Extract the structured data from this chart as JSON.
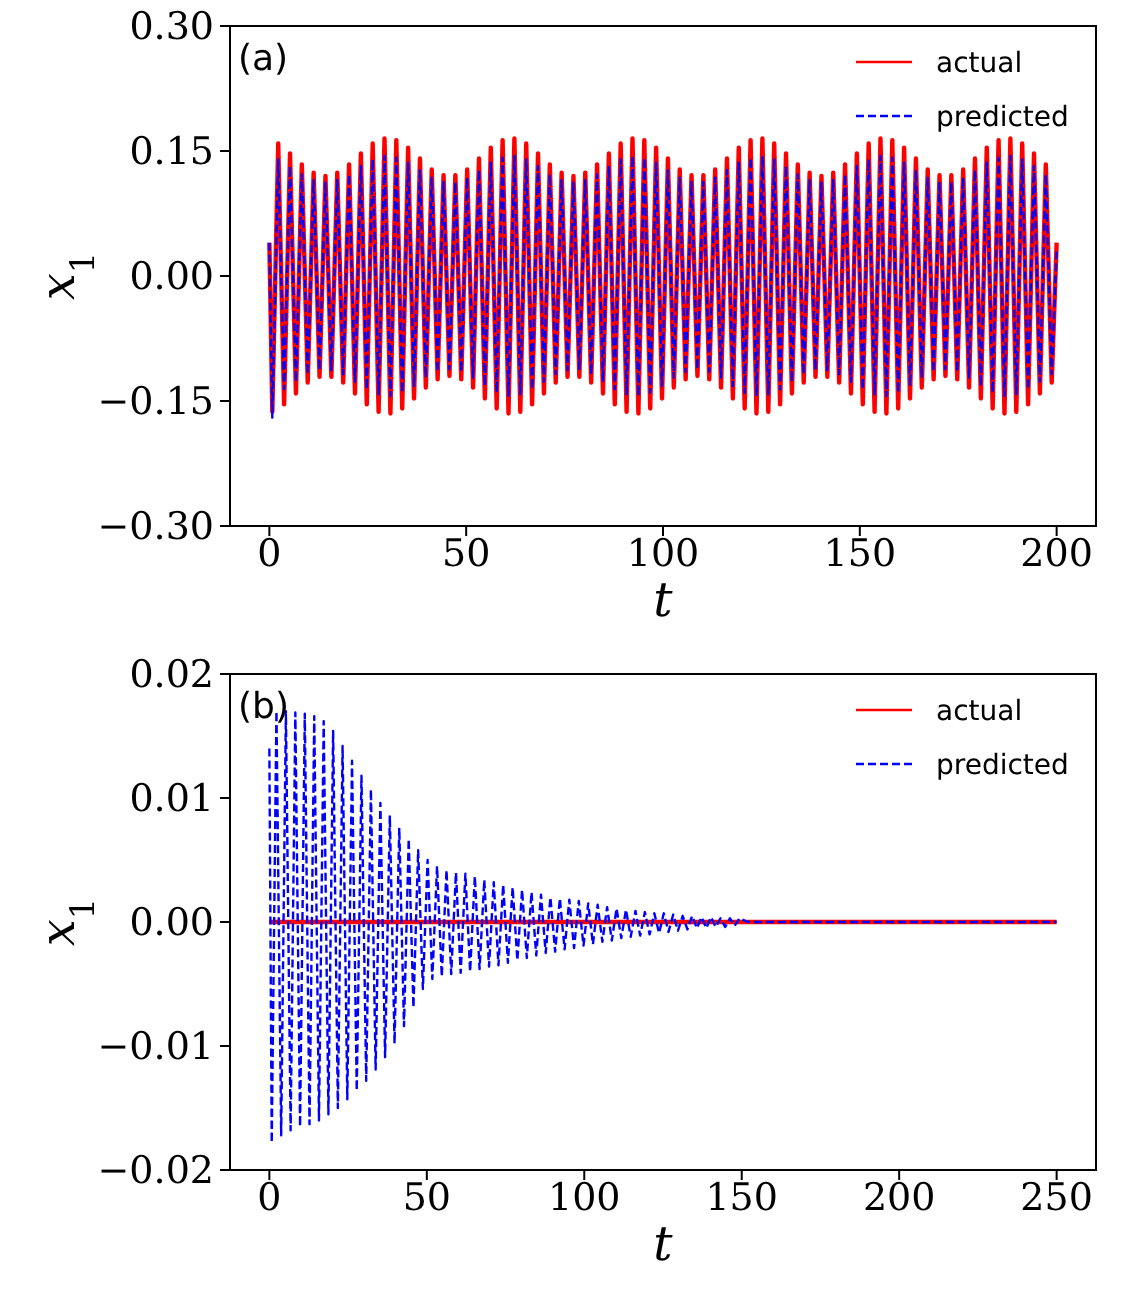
{
  "chart_data": [
    {
      "type": "line",
      "xlabel": "t",
      "ylabel": "x$_{1}$",
      "annotations": [
        "(a)"
      ],
      "legend": "top right",
      "grid": false,
      "xlim": [
        -10,
        210
      ],
      "xticks": [
        0,
        50,
        100,
        150,
        200
      ],
      "ylim": [
        -0.3,
        0.3
      ],
      "yticks": [
        {
          "value": -0.3,
          "label": "−0.30"
        },
        {
          "value": -0.15,
          "label": "−0.15"
        },
        {
          "value": 0,
          "label": "0.00"
        },
        {
          "value": 0.15,
          "label": "0.15"
        },
        {
          "value": 0.3,
          "label": "0.30"
        }
      ],
      "x": [
        0,
        0.75,
        2.25,
        3.75,
        5.25,
        6.75,
        8.25,
        9.75,
        11.25,
        12.75,
        14.25,
        15.75,
        17.25,
        18.75,
        20.25,
        21.75,
        23.25,
        24.75,
        26.25,
        27.75,
        29.25,
        30.75,
        32.25,
        33.75,
        35.25,
        36.75,
        38.25,
        39.75,
        41.25,
        42.75,
        44.25,
        45.75,
        47.25,
        48.75,
        50.25,
        51.75,
        53.25,
        54.75,
        56.25,
        57.75,
        59.25,
        60.75,
        62.25,
        63.75,
        65.25,
        66.75,
        68.25,
        69.75,
        71.25,
        72.75,
        74.25,
        75.75,
        77.25,
        78.75,
        80.25,
        81.75,
        83.25,
        84.75,
        86.25,
        87.75,
        89.25,
        90.75,
        92.25,
        93.75,
        95.25,
        96.75,
        98.25,
        99.75,
        101.25,
        102.75,
        104.25,
        105.75,
        107.25,
        108.75,
        110.25,
        111.75,
        113.25,
        114.75,
        116.25,
        117.75,
        119.25,
        120.75,
        122.25,
        123.75,
        125.25,
        126.75,
        128.25,
        129.75,
        131.25,
        132.75,
        134.25,
        135.75,
        137.25,
        138.75,
        140.25,
        141.75,
        143.25,
        144.75,
        146.25,
        147.75,
        149.25,
        150.75,
        152.25,
        153.75,
        155.25,
        156.75,
        158.25,
        159.75,
        161.25,
        162.75,
        164.25,
        165.75,
        167.25,
        168.75,
        170.25,
        171.75,
        173.25,
        174.75,
        176.25,
        177.75,
        179.25,
        180.75,
        182.25,
        183.75,
        185.25,
        186.75,
        188.25,
        189.75,
        191.25,
        192.75,
        194.25,
        195.75,
        197.25,
        198.75,
        200
      ],
      "series": [
        {
          "name": "actual",
          "color": "#ff0000",
          "line_style": "solid",
          "values": [
            0.04,
            -0.163,
            0.159,
            -0.154,
            0.147,
            -0.141,
            0.134,
            -0.128,
            0.124,
            -0.121,
            0.12,
            -0.121,
            0.124,
            -0.128,
            0.134,
            -0.141,
            0.147,
            -0.154,
            0.159,
            -0.163,
            0.165,
            -0.165,
            0.163,
            -0.159,
            0.154,
            -0.147,
            0.141,
            -0.134,
            0.128,
            -0.124,
            0.121,
            -0.12,
            0.121,
            -0.124,
            0.128,
            -0.134,
            0.141,
            -0.147,
            0.154,
            -0.159,
            0.163,
            -0.165,
            0.165,
            -0.163,
            0.159,
            -0.154,
            0.147,
            -0.141,
            0.134,
            -0.128,
            0.124,
            -0.121,
            0.12,
            -0.121,
            0.124,
            -0.128,
            0.134,
            -0.141,
            0.147,
            -0.154,
            0.159,
            -0.163,
            0.165,
            -0.165,
            0.163,
            -0.159,
            0.154,
            -0.147,
            0.141,
            -0.134,
            0.128,
            -0.124,
            0.121,
            -0.12,
            0.121,
            -0.124,
            0.128,
            -0.134,
            0.141,
            -0.147,
            0.154,
            -0.159,
            0.163,
            -0.165,
            0.165,
            -0.163,
            0.159,
            -0.154,
            0.147,
            -0.141,
            0.134,
            -0.128,
            0.124,
            -0.121,
            0.12,
            -0.121,
            0.124,
            -0.128,
            0.134,
            -0.141,
            0.147,
            -0.154,
            0.159,
            -0.163,
            0.165,
            -0.165,
            0.163,
            -0.159,
            0.154,
            -0.147,
            0.141,
            -0.134,
            0.128,
            -0.124,
            0.121,
            -0.12,
            0.121,
            -0.124,
            0.128,
            -0.134,
            0.141,
            -0.147,
            0.154,
            -0.159,
            0.163,
            -0.165,
            0.165,
            -0.163,
            0.159,
            -0.154,
            0.147,
            -0.141,
            0.134,
            -0.128,
            0.04
          ]
        },
        {
          "name": "predicted",
          "color": "#0000ff",
          "line_style": "dashed",
          "values": [
            0.04,
            -0.17,
            0.14,
            -0.136,
            0.132,
            -0.127,
            0.122,
            -0.118,
            0.115,
            -0.113,
            0.112,
            -0.113,
            0.115,
            -0.118,
            0.122,
            -0.127,
            0.132,
            -0.136,
            0.14,
            -0.142,
            0.144,
            -0.144,
            0.142,
            -0.14,
            0.136,
            -0.132,
            0.127,
            -0.122,
            0.118,
            -0.115,
            0.113,
            -0.112,
            0.113,
            -0.115,
            0.118,
            -0.122,
            0.127,
            -0.132,
            0.136,
            -0.14,
            0.142,
            -0.144,
            0.144,
            -0.142,
            0.14,
            -0.136,
            0.132,
            -0.127,
            0.122,
            -0.118,
            0.115,
            -0.113,
            0.112,
            -0.113,
            0.115,
            -0.118,
            0.122,
            -0.127,
            0.132,
            -0.136,
            0.14,
            -0.142,
            0.144,
            -0.144,
            0.142,
            -0.14,
            0.136,
            -0.132,
            0.127,
            -0.122,
            0.118,
            -0.115,
            0.113,
            -0.112,
            0.113,
            -0.115,
            0.118,
            -0.122,
            0.127,
            -0.132,
            0.136,
            -0.14,
            0.142,
            -0.144,
            0.144,
            -0.142,
            0.14,
            -0.136,
            0.132,
            -0.127,
            0.122,
            -0.118,
            0.115,
            -0.113,
            0.112,
            -0.113,
            0.115,
            -0.118,
            0.122,
            -0.127,
            0.132,
            -0.136,
            0.14,
            -0.142,
            0.144,
            -0.144,
            0.142,
            -0.14,
            0.136,
            -0.132,
            0.127,
            -0.122,
            0.118,
            -0.115,
            0.113,
            -0.112,
            0.113,
            -0.115,
            0.118,
            -0.122,
            0.127,
            -0.132,
            0.136,
            -0.14,
            0.142,
            -0.144,
            0.144,
            -0.142,
            0.14,
            -0.136,
            0.132,
            -0.127,
            0.122,
            -0.118,
            0.03
          ]
        }
      ]
    },
    {
      "type": "line",
      "xlabel": "t",
      "ylabel": "x$_{1}$",
      "annotations": [
        "(b)"
      ],
      "legend": "top right",
      "grid": false,
      "xlim": [
        -12.5,
        262.5
      ],
      "xticks": [
        0,
        50,
        100,
        150,
        200,
        250
      ],
      "ylim": [
        -0.02,
        0.02
      ],
      "yticks": [
        {
          "value": -0.02,
          "label": "−0.02"
        },
        {
          "value": -0.01,
          "label": "−0.01"
        },
        {
          "value": 0,
          "label": "0.00"
        },
        {
          "value": 0.01,
          "label": "0.01"
        },
        {
          "value": 0.02,
          "label": "0.02"
        }
      ],
      "series": [
        {
          "name": "actual",
          "color": "#ff0000",
          "line_style": "solid",
          "x": [
            0,
            250
          ],
          "values": [
            0,
            0
          ]
        },
        {
          "name": "predicted",
          "color": "#0000ff",
          "line_style": "dashed",
          "x": [
            0,
            0.75,
            2.25,
            3.75,
            5.25,
            6.75,
            8.25,
            9.75,
            11.25,
            12.75,
            14.25,
            15.75,
            17.25,
            18.75,
            20.25,
            21.75,
            23.25,
            24.75,
            26.25,
            27.75,
            29.25,
            30.75,
            32.25,
            33.75,
            35.25,
            36.75,
            38.25,
            39.75,
            41.25,
            42.75,
            44.25,
            45.75,
            47.25,
            48.75,
            50.25,
            51.75,
            53.25,
            54.75,
            56.25,
            57.75,
            59.25,
            60.75,
            62.25,
            63.75,
            65.25,
            66.75,
            68.25,
            69.75,
            71.25,
            72.75,
            74.25,
            75.75,
            77.25,
            78.75,
            80.25,
            81.75,
            83.25,
            84.75,
            86.25,
            87.75,
            89.25,
            90.75,
            92.25,
            93.75,
            95.25,
            96.75,
            98.25,
            99.75,
            101.25,
            102.75,
            104.25,
            105.75,
            107.25,
            108.75,
            110.25,
            111.75,
            113.25,
            114.75,
            116.25,
            117.75,
            119.25,
            120.75,
            122.25,
            123.75,
            125.25,
            126.75,
            128.25,
            129.75,
            131.25,
            132.75,
            134.25,
            135.75,
            137.25,
            138.75,
            140.25,
            141.75,
            143.25,
            144.75,
            146.25,
            147.75,
            149.25,
            152,
            250
          ],
          "values": [
            0.014,
            -0.0178,
            0.017,
            -0.0172,
            0.017,
            -0.0168,
            0.0169,
            -0.0165,
            0.0168,
            -0.0163,
            0.0166,
            -0.016,
            0.0162,
            -0.0155,
            0.0154,
            -0.015,
            0.0142,
            -0.0143,
            0.013,
            -0.0136,
            0.0118,
            -0.0128,
            0.0107,
            -0.0119,
            0.0096,
            -0.0109,
            0.0086,
            -0.0098,
            0.0076,
            -0.0084,
            0.0067,
            -0.0069,
            0.0058,
            -0.0054,
            0.005,
            -0.0046,
            0.0045,
            -0.0044,
            0.0042,
            -0.0042,
            0.004,
            -0.0041,
            0.0039,
            -0.004,
            0.0037,
            -0.0038,
            0.0034,
            -0.0036,
            0.0032,
            -0.0035,
            0.003,
            -0.0033,
            0.0028,
            -0.0031,
            0.0026,
            -0.0029,
            0.0024,
            -0.0027,
            0.0022,
            -0.0025,
            0.002,
            -0.0024,
            0.0019,
            -0.0022,
            0.0018,
            -0.0021,
            0.0017,
            -0.0019,
            0.0015,
            -0.0018,
            0.0014,
            -0.0016,
            0.0012,
            -0.0015,
            0.0011,
            -0.0013,
            0.001,
            -0.0012,
            0.0009,
            -0.0011,
            0.0008,
            -0.001,
            0.0007,
            -0.0009,
            0.0007,
            -0.0008,
            0.0006,
            -0.0007,
            0.0005,
            -0.0006,
            0.0005,
            -0.0005,
            0.0004,
            -0.0005,
            0.0004,
            -0.0004,
            0.0003,
            -0.0004,
            0.0003,
            -0.0003,
            0.0003,
            0,
            0
          ]
        }
      ]
    }
  ]
}
